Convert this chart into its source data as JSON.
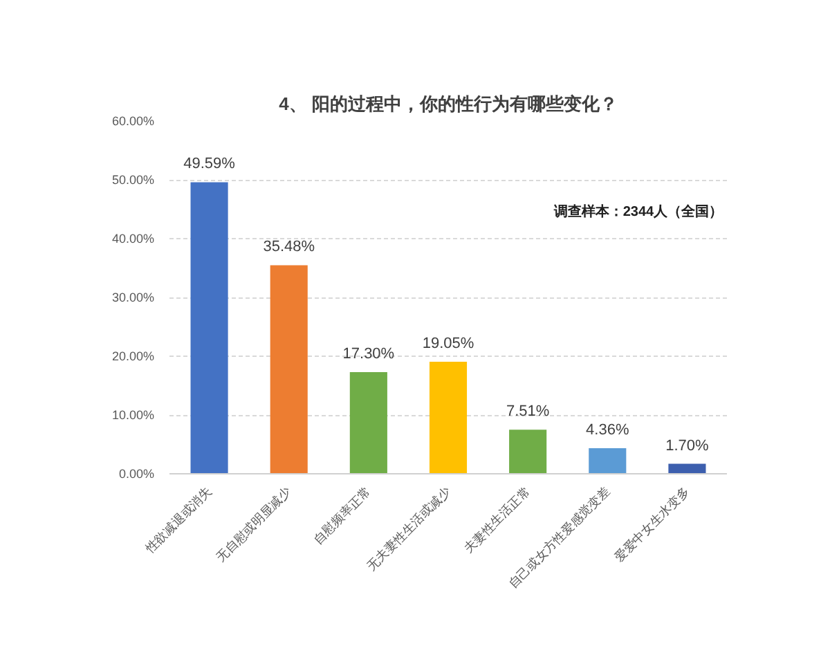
{
  "chart_data": {
    "type": "bar",
    "title": "4、 阳的过程中，你的性行为有哪些变化？",
    "categories": [
      "性欲减退或消失",
      "无自慰或明显减少",
      "自慰频率正常",
      "无夫妻性生活或减少",
      "夫妻性生活正常",
      "自己或女方性爱感觉变差",
      "爱爱中女生水变多"
    ],
    "values": [
      49.59,
      35.48,
      17.3,
      19.05,
      7.51,
      4.36,
      1.7
    ],
    "colors": [
      "#4472c4",
      "#ed7d31",
      "#70ad47",
      "#ffc000",
      "#70ad47",
      "#5b9bd5",
      "#3d5fae"
    ],
    "value_labels": [
      "49.59%",
      "35.48%",
      "17.30%",
      "19.05%",
      "7.51%",
      "4.36%",
      "1.70%"
    ],
    "ylim": [
      0,
      60
    ],
    "yticks": [
      {
        "value": 0,
        "label": "0.00%"
      },
      {
        "value": 10,
        "label": "10.00%"
      },
      {
        "value": 20,
        "label": "20.00%"
      },
      {
        "value": 30,
        "label": "30.00%"
      },
      {
        "value": 40,
        "label": "40.00%"
      },
      {
        "value": 50,
        "label": "50.00%"
      },
      {
        "value": 60,
        "label": "60.00%"
      }
    ],
    "grid": "y",
    "annotations": [
      "调查样本：2344人（全国）"
    ]
  }
}
